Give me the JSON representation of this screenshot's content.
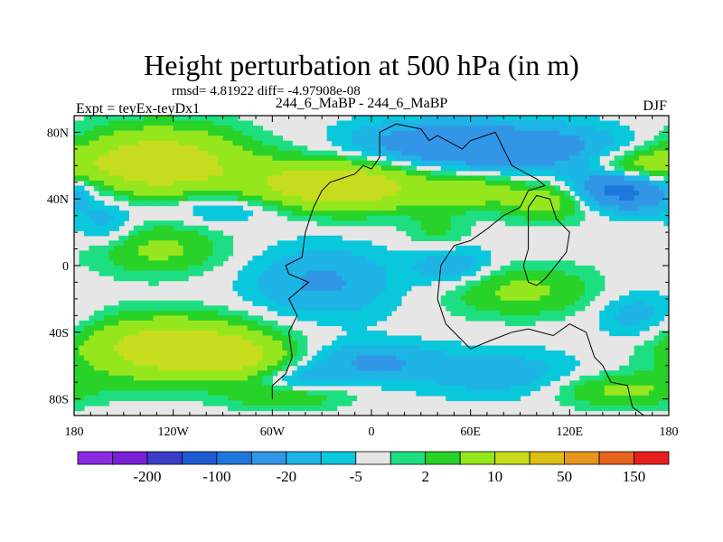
{
  "title": "Height perturbation at 500 hPa (in m)",
  "stats_line": "rmsd= 4.81922  diff= -4.97908e-08",
  "experiment_label": "Expt = teyEx-teyDx1",
  "run_label": "244_6_MaBP - 244_6_MaBP",
  "season_label": "DJF",
  "chart_data": {
    "type": "heatmap",
    "title": "Height perturbation at 500 hPa (in m)",
    "xlabel": "",
    "ylabel": "",
    "xlim": [
      -180,
      180
    ],
    "ylim": [
      -90,
      90
    ],
    "x_ticks": [
      {
        "value": -180,
        "label": "180"
      },
      {
        "value": -120,
        "label": "120W"
      },
      {
        "value": -60,
        "label": "60W"
      },
      {
        "value": 0,
        "label": "0"
      },
      {
        "value": 60,
        "label": "60E"
      },
      {
        "value": 120,
        "label": "120E"
      },
      {
        "value": 180,
        "label": "180"
      }
    ],
    "y_ticks": [
      {
        "value": 80,
        "label": "80N"
      },
      {
        "value": 40,
        "label": "40N"
      },
      {
        "value": 0,
        "label": "0"
      },
      {
        "value": -40,
        "label": "40S"
      },
      {
        "value": -80,
        "label": "80S"
      }
    ],
    "colorbar": {
      "colors": [
        "#8a2be2",
        "#7a1fd6",
        "#3c3cc8",
        "#1e5ad2",
        "#1e78dc",
        "#3296e6",
        "#1eb4e6",
        "#0ac8dc",
        "#e6e6e6",
        "#1ede82",
        "#28d228",
        "#96e61e",
        "#c8dc1e",
        "#dcbe14",
        "#e6961e",
        "#e6641e",
        "#e61e1e"
      ],
      "labels": [
        {
          "after_index": 1,
          "text": "-200"
        },
        {
          "after_index": 3,
          "text": "-100"
        },
        {
          "after_index": 5,
          "text": "-20"
        },
        {
          "after_index": 7,
          "text": "-5"
        },
        {
          "after_index": 9,
          "text": "2"
        },
        {
          "after_index": 11,
          "text": "10"
        },
        {
          "after_index": 13,
          "text": "50"
        },
        {
          "after_index": 15,
          "text": "150"
        }
      ]
    },
    "field_blobs": [
      {
        "lon": -130,
        "lat": 62,
        "rlon": 52,
        "rlat": 20,
        "amp": 30
      },
      {
        "lon": -20,
        "lat": 48,
        "rlon": 55,
        "rlat": 15,
        "amp": 32
      },
      {
        "lon": 40,
        "lat": 72,
        "rlon": 55,
        "rlat": 15,
        "amp": -16
      },
      {
        "lon": 110,
        "lat": 70,
        "rlon": 60,
        "rlat": 15,
        "amp": -12
      },
      {
        "lon": 160,
        "lat": 60,
        "rlon": 30,
        "rlat": 10,
        "amp": 14
      },
      {
        "lon": 150,
        "lat": 45,
        "rlon": 35,
        "rlat": 12,
        "amp": -28
      },
      {
        "lon": 110,
        "lat": 40,
        "rlon": 30,
        "rlat": 12,
        "amp": 18
      },
      {
        "lon": 60,
        "lat": 45,
        "rlon": 25,
        "rlat": 10,
        "amp": 12
      },
      {
        "lon": -90,
        "lat": 35,
        "rlon": 40,
        "rlat": 10,
        "amp": -9
      },
      {
        "lon": -130,
        "lat": 10,
        "rlon": 40,
        "rlat": 15,
        "amp": 12
      },
      {
        "lon": -160,
        "lat": 25,
        "rlon": 20,
        "rlat": 15,
        "amp": -8
      },
      {
        "lon": -30,
        "lat": -10,
        "rlon": 45,
        "rlat": 22,
        "amp": -11
      },
      {
        "lon": 50,
        "lat": 0,
        "rlon": 25,
        "rlat": 12,
        "amp": -10
      },
      {
        "lon": 90,
        "lat": -15,
        "rlon": 45,
        "rlat": 15,
        "amp": 12
      },
      {
        "lon": -120,
        "lat": -50,
        "rlon": 55,
        "rlat": 18,
        "amp": 30
      },
      {
        "lon": -80,
        "lat": -55,
        "rlon": 30,
        "rlat": 12,
        "amp": 14
      },
      {
        "lon": -45,
        "lat": -70,
        "rlon": 25,
        "rlat": 10,
        "amp": -9
      },
      {
        "lon": 0,
        "lat": -58,
        "rlon": 40,
        "rlat": 12,
        "amp": -11
      },
      {
        "lon": 80,
        "lat": -65,
        "rlon": 50,
        "rlat": 15,
        "amp": -8
      },
      {
        "lon": -50,
        "lat": -78,
        "rlon": 35,
        "rlat": 8,
        "amp": 12
      },
      {
        "lon": 150,
        "lat": -75,
        "rlon": 40,
        "rlat": 10,
        "amp": 12
      },
      {
        "lon": 160,
        "lat": -30,
        "rlon": 25,
        "rlat": 15,
        "amp": -8
      },
      {
        "lon": 40,
        "lat": 20,
        "rlon": 20,
        "rlat": 12,
        "amp": 6
      }
    ],
    "continent_outline_lonlat": [
      [
        -60,
        -80
      ],
      [
        -60,
        -72
      ],
      [
        -52,
        -65
      ],
      [
        -48,
        -55
      ],
      [
        -50,
        -40
      ],
      [
        -45,
        -30
      ],
      [
        -50,
        -20
      ],
      [
        -38,
        -10
      ],
      [
        -50,
        -5
      ],
      [
        -52,
        0
      ],
      [
        -42,
        5
      ],
      [
        -40,
        20
      ],
      [
        -35,
        35
      ],
      [
        -30,
        45
      ],
      [
        -25,
        50
      ],
      [
        -10,
        55
      ],
      [
        -5,
        60
      ],
      [
        0,
        58
      ],
      [
        5,
        65
      ],
      [
        5,
        80
      ],
      [
        15,
        85
      ],
      [
        30,
        82
      ],
      [
        35,
        75
      ],
      [
        40,
        78
      ],
      [
        55,
        70
      ],
      [
        60,
        75
      ],
      [
        75,
        80
      ],
      [
        80,
        70
      ],
      [
        85,
        60
      ],
      [
        100,
        52
      ],
      [
        105,
        48
      ],
      [
        95,
        45
      ],
      [
        90,
        35
      ],
      [
        80,
        30
      ],
      [
        70,
        22
      ],
      [
        60,
        15
      ],
      [
        50,
        12
      ],
      [
        42,
        0
      ],
      [
        40,
        -20
      ],
      [
        45,
        -35
      ],
      [
        60,
        -50
      ],
      [
        72,
        -45
      ],
      [
        85,
        -40
      ],
      [
        95,
        -38
      ],
      [
        110,
        -42
      ],
      [
        120,
        -35
      ],
      [
        130,
        -40
      ],
      [
        135,
        -55
      ],
      [
        140,
        -60
      ],
      [
        145,
        -70
      ],
      [
        155,
        -72
      ],
      [
        158,
        -85
      ],
      [
        165,
        -90
      ]
    ],
    "continent_outline_lonlat_2": [
      [
        95,
        20
      ],
      [
        95,
        10
      ],
      [
        92,
        0
      ],
      [
        95,
        -10
      ],
      [
        100,
        -12
      ],
      [
        105,
        -8
      ],
      [
        110,
        -2
      ],
      [
        118,
        8
      ],
      [
        120,
        20
      ],
      [
        112,
        28
      ],
      [
        108,
        40
      ],
      [
        100,
        42
      ],
      [
        95,
        35
      ],
      [
        95,
        20
      ]
    ]
  }
}
